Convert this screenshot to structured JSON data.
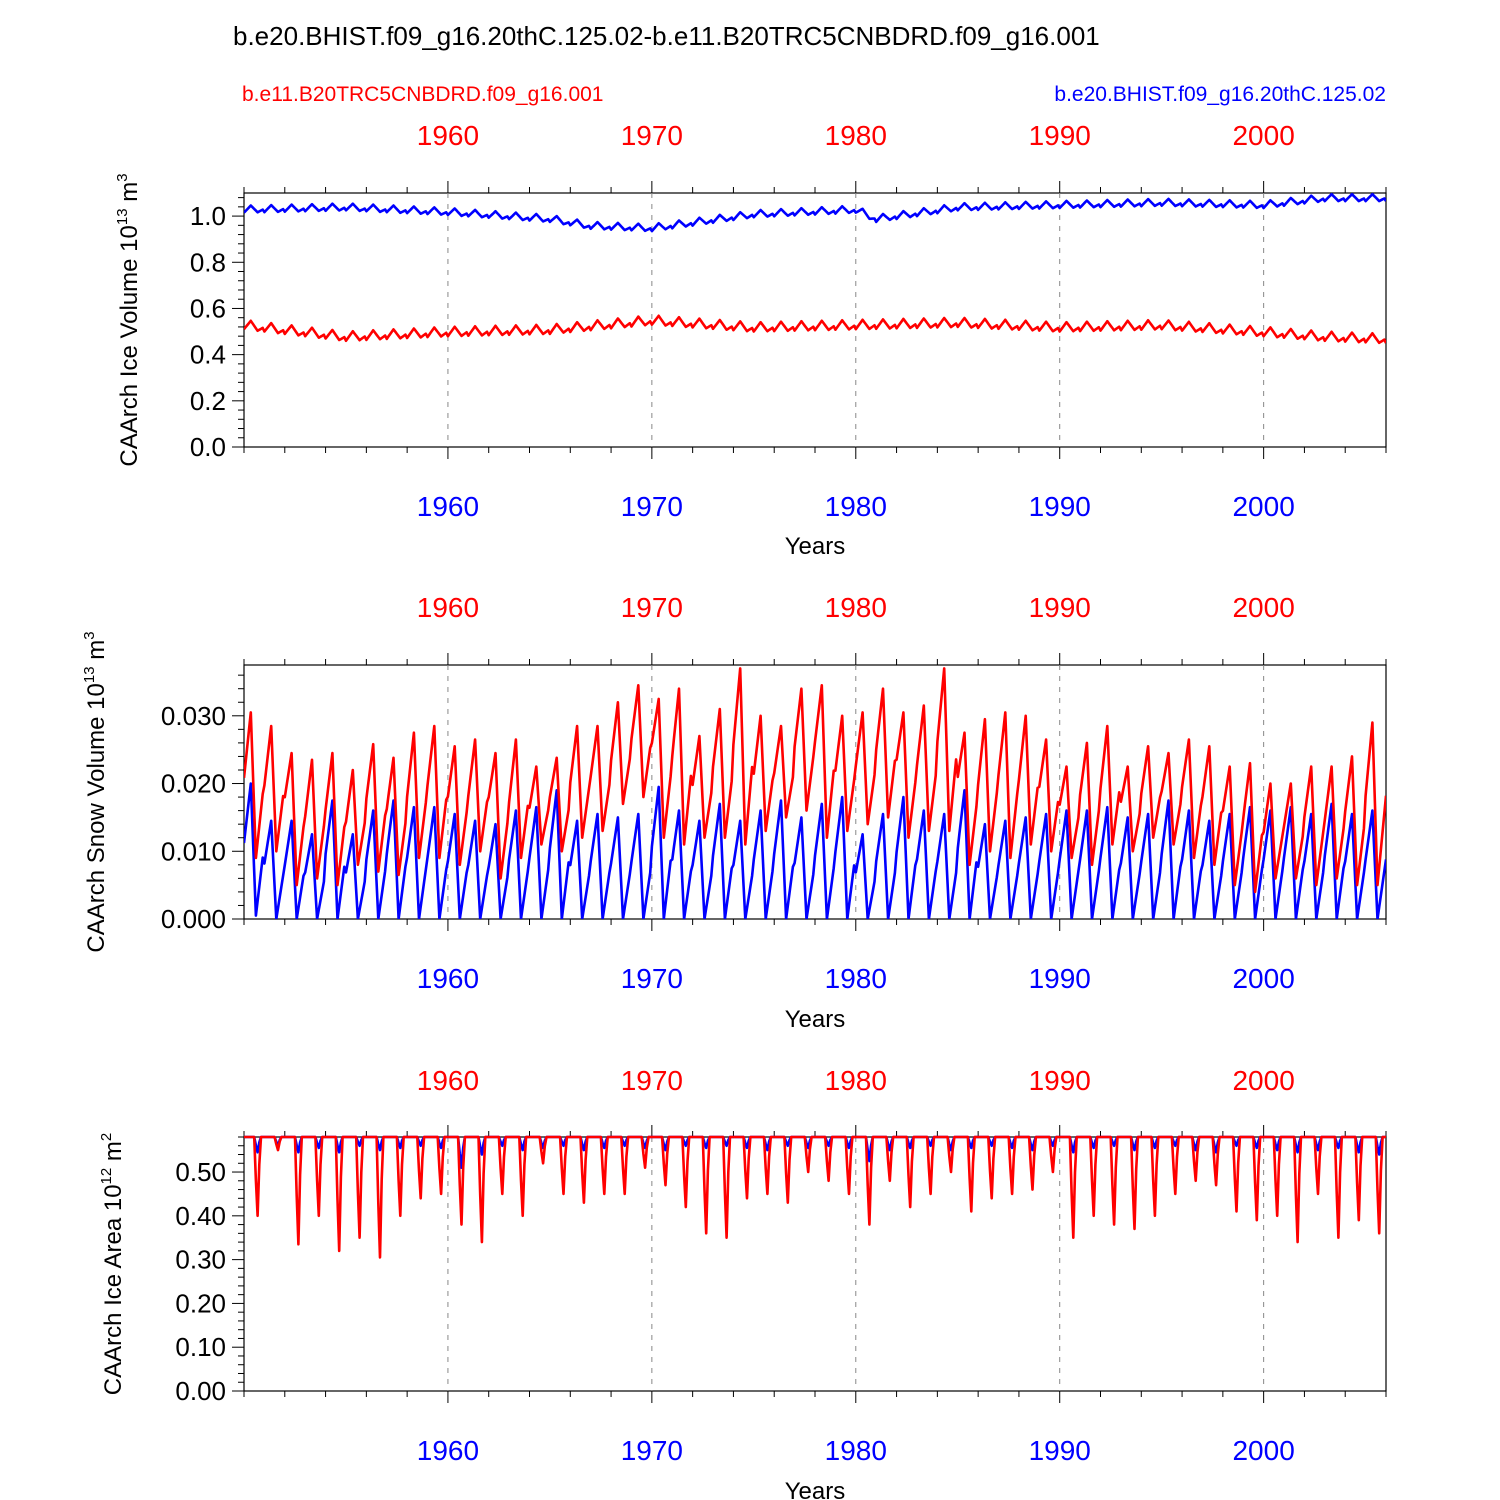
{
  "title": "b.e20.BHIST.f09_g16.20thC.125.02-b.e11.B20TRC5CNBDRD.f09_g16.001",
  "legend": {
    "red_case": "b.e11.B20TRC5CNBDRD.f09_g16.001",
    "blue_case": "b.e20.BHIST.f09_g16.20thC.125.02"
  },
  "colors": {
    "red": "#ff0000",
    "blue": "#0000ff",
    "axis": "#000000",
    "grid": "#888888"
  },
  "chart_data": [
    {
      "type": "line",
      "id": "ice-volume",
      "ylabel_main": "CAArch Ice Volume 10",
      "ylabel_exp": "13",
      "ylabel_unit": " m",
      "ylabel_unit_exp": "3",
      "xlabel": "Years",
      "xlim": [
        1950,
        2006
      ],
      "ylim": [
        0,
        1.1
      ],
      "yticks": [
        0.0,
        0.2,
        0.4,
        0.6,
        0.8,
        1.0
      ],
      "ytick_labels": [
        "0.0",
        "0.2",
        "0.4",
        "0.6",
        "0.8",
        "1.0"
      ],
      "xticks": [
        1960,
        1970,
        1980,
        1990,
        2000
      ],
      "xtick_labels": [
        "1960",
        "1970",
        "1980",
        "1990",
        "2000"
      ],
      "series": [
        {
          "name": "b.e20.BHIST.f09_g16.20thC.125.02",
          "color": "blue",
          "x": [
            1950,
            1955,
            1960,
            1965,
            1967,
            1970,
            1975,
            1980,
            1981,
            1985,
            1990,
            1995,
            2000,
            2003,
            2006
          ],
          "y": [
            1.03,
            1.04,
            1.02,
            0.99,
            0.96,
            0.95,
            1.01,
            1.03,
            0.99,
            1.04,
            1.05,
            1.06,
            1.05,
            1.08,
            1.08
          ],
          "amplitude": 0.03
        },
        {
          "name": "b.e11.B20TRC5CNBDRD.f09_g16.001",
          "color": "red",
          "x": [
            1950,
            1955,
            1960,
            1965,
            1970,
            1975,
            1980,
            1985,
            1990,
            1995,
            2000,
            2003,
            2006
          ],
          "y": [
            0.53,
            0.48,
            0.5,
            0.51,
            0.55,
            0.52,
            0.53,
            0.54,
            0.52,
            0.53,
            0.5,
            0.48,
            0.47
          ],
          "amplitude": 0.04
        }
      ]
    },
    {
      "type": "line",
      "id": "snow-volume",
      "ylabel_main": "CAArch Snow Volume 10",
      "ylabel_exp": "13",
      "ylabel_unit": " m",
      "ylabel_unit_exp": "3",
      "xlabel": "Years",
      "xlim": [
        1950,
        2006
      ],
      "ylim": [
        0,
        0.0375
      ],
      "yticks": [
        0.0,
        0.01,
        0.02,
        0.03
      ],
      "ytick_labels": [
        "0.000",
        "0.010",
        "0.020",
        "0.030"
      ],
      "xticks": [
        1960,
        1970,
        1980,
        1990,
        2000
      ],
      "xtick_labels": [
        "1960",
        "1970",
        "1980",
        "1990",
        "2000"
      ],
      "series": [
        {
          "name": "b.e20.BHIST.f09_g16.20thC.125.02",
          "color": "blue",
          "annual_min": [
            0.0005,
            0.0,
            0.0,
            0.0,
            0.0,
            0.0,
            0.0,
            0.0,
            0.0,
            0.0,
            0.0,
            0.0,
            0.0,
            0.0,
            0.0,
            0.0,
            0.0,
            0.0,
            0.0,
            0.0,
            0.0,
            0.0,
            0.0,
            0.0,
            0.0,
            0.0,
            0.0,
            0.0,
            0.0,
            0.0,
            0.0,
            0.0,
            0.0,
            0.0,
            0.0,
            0.0,
            0.0,
            0.0,
            0.0,
            0.0,
            0.0,
            0.0,
            0.0,
            0.0,
            0.0,
            0.0,
            0.0,
            0.0,
            0.0,
            0.0,
            0.0,
            0.0,
            0.0,
            0.0,
            0.0,
            0.0
          ],
          "annual_max": [
            0.02,
            0.0145,
            0.0145,
            0.0125,
            0.0175,
            0.0125,
            0.016,
            0.0175,
            0.0165,
            0.0165,
            0.0155,
            0.0145,
            0.014,
            0.016,
            0.0165,
            0.019,
            0.0145,
            0.0155,
            0.015,
            0.0155,
            0.0195,
            0.016,
            0.0145,
            0.017,
            0.0145,
            0.016,
            0.0175,
            0.015,
            0.017,
            0.018,
            0.0125,
            0.0155,
            0.018,
            0.016,
            0.0155,
            0.019,
            0.014,
            0.0145,
            0.015,
            0.0155,
            0.016,
            0.016,
            0.0165,
            0.015,
            0.0155,
            0.0175,
            0.016,
            0.0145,
            0.0155,
            0.0165,
            0.016,
            0.0165,
            0.0155,
            0.017,
            0.0155,
            0.016
          ]
        },
        {
          "name": "b.e11.B20TRC5CNBDRD.f09_g16.001",
          "color": "red",
          "annual_min": [
            0.009,
            0.01,
            0.005,
            0.006,
            0.005,
            0.008,
            0.007,
            0.0065,
            0.009,
            0.009,
            0.008,
            0.01,
            0.006,
            0.009,
            0.011,
            0.01,
            0.012,
            0.013,
            0.017,
            0.018,
            0.012,
            0.011,
            0.012,
            0.012,
            0.011,
            0.013,
            0.015,
            0.016,
            0.012,
            0.013,
            0.014,
            0.015,
            0.012,
            0.013,
            0.013,
            0.008,
            0.01,
            0.009,
            0.011,
            0.01,
            0.009,
            0.008,
            0.011,
            0.01,
            0.012,
            0.011,
            0.009,
            0.008,
            0.005,
            0.004,
            0.006,
            0.006,
            0.005,
            0.006,
            0.005,
            0.005
          ],
          "annual_max": [
            0.0305,
            0.0285,
            0.0245,
            0.0235,
            0.0245,
            0.022,
            0.0258,
            0.0238,
            0.0275,
            0.0285,
            0.0255,
            0.0265,
            0.0245,
            0.0265,
            0.0225,
            0.0238,
            0.0285,
            0.0285,
            0.032,
            0.0345,
            0.0325,
            0.034,
            0.027,
            0.031,
            0.037,
            0.03,
            0.0285,
            0.034,
            0.0345,
            0.03,
            0.0305,
            0.034,
            0.0305,
            0.0315,
            0.037,
            0.0275,
            0.0295,
            0.0305,
            0.03,
            0.0265,
            0.0225,
            0.026,
            0.0285,
            0.0225,
            0.0255,
            0.0245,
            0.0265,
            0.0255,
            0.0225,
            0.023,
            0.02,
            0.02,
            0.0225,
            0.0225,
            0.024,
            0.029
          ]
        }
      ]
    },
    {
      "type": "line",
      "id": "ice-area",
      "ylabel_main": "CAArch Ice Area 10",
      "ylabel_exp": "12",
      "ylabel_unit": " m",
      "ylabel_unit_exp": "2",
      "xlabel": "Years",
      "xlim": [
        1950,
        2006
      ],
      "ylim": [
        0,
        0.58
      ],
      "yticks": [
        0.0,
        0.1,
        0.2,
        0.3,
        0.4,
        0.5
      ],
      "ytick_labels": [
        "0.00",
        "0.10",
        "0.20",
        "0.30",
        "0.40",
        "0.50"
      ],
      "xticks": [
        1960,
        1970,
        1980,
        1990,
        2000
      ],
      "xtick_labels": [
        "1960",
        "1970",
        "1980",
        "1990",
        "2000"
      ],
      "series": [
        {
          "name": "b.e20.BHIST.f09_g16.20thC.125.02",
          "color": "blue",
          "cap": 0.58,
          "annual_min": [
            0.545,
            0.56,
            0.545,
            0.555,
            0.545,
            0.56,
            0.55,
            0.555,
            0.56,
            0.555,
            0.51,
            0.54,
            0.56,
            0.55,
            0.555,
            0.56,
            0.55,
            0.555,
            0.56,
            0.555,
            0.55,
            0.56,
            0.555,
            0.56,
            0.555,
            0.55,
            0.56,
            0.555,
            0.56,
            0.555,
            0.525,
            0.55,
            0.555,
            0.56,
            0.55,
            0.555,
            0.56,
            0.555,
            0.55,
            0.56,
            0.545,
            0.555,
            0.56,
            0.55,
            0.555,
            0.56,
            0.55,
            0.545,
            0.56,
            0.555,
            0.55,
            0.545,
            0.55,
            0.555,
            0.545,
            0.54
          ]
        },
        {
          "name": "b.e11.B20TRC5CNBDRD.f09_g16.001",
          "color": "red",
          "cap": 0.58,
          "annual_min": [
            0.4,
            0.55,
            0.335,
            0.4,
            0.32,
            0.35,
            0.305,
            0.4,
            0.44,
            0.45,
            0.38,
            0.34,
            0.45,
            0.4,
            0.52,
            0.45,
            0.43,
            0.45,
            0.45,
            0.51,
            0.47,
            0.42,
            0.36,
            0.35,
            0.44,
            0.45,
            0.43,
            0.5,
            0.48,
            0.45,
            0.38,
            0.48,
            0.42,
            0.45,
            0.5,
            0.41,
            0.44,
            0.45,
            0.46,
            0.5,
            0.35,
            0.4,
            0.38,
            0.37,
            0.4,
            0.45,
            0.48,
            0.47,
            0.41,
            0.39,
            0.4,
            0.34,
            0.45,
            0.35,
            0.39,
            0.36
          ]
        }
      ]
    }
  ]
}
